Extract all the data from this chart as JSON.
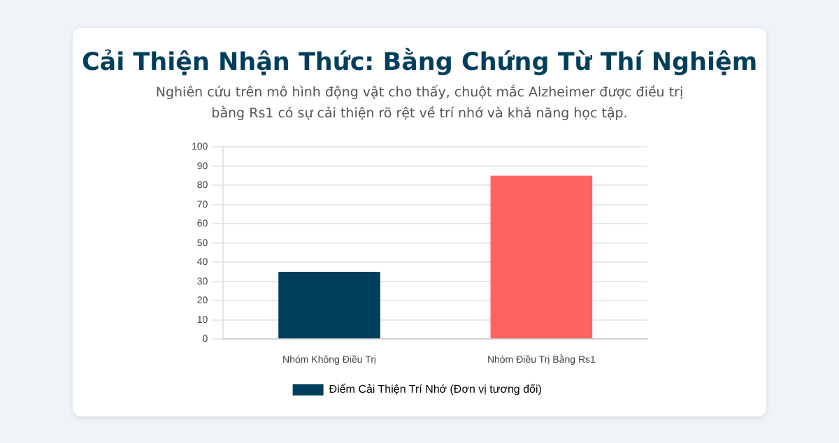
{
  "chart_data": {
    "type": "bar",
    "title": "Cải Thiện Nhận Thức: Bằng Chứng Từ Thí Nghiệm",
    "subtitle": "Nghiên cứu trên mô hình động vật cho thấy, chuột mắc Alzheimer được điều trị bằng Rs1 có sự cải thiện rõ rệt về trí nhớ và khả năng học tập.",
    "categories": [
      "Nhóm Không Điều Trị",
      "Nhóm Điều Trị Bằng Rs1"
    ],
    "series": [
      {
        "name": "Điểm Cải Thiện Trí Nhớ (Đơn vị tương đối)",
        "color": "#003f5c",
        "colors": [
          "#003f5c",
          "#ff6361"
        ],
        "values": [
          35,
          85
        ]
      }
    ],
    "ylim": [
      0,
      100
    ],
    "yticks": [
      0,
      10,
      20,
      30,
      40,
      50,
      60,
      70,
      80,
      90,
      100
    ],
    "grid": "y",
    "legend": "bottom"
  }
}
